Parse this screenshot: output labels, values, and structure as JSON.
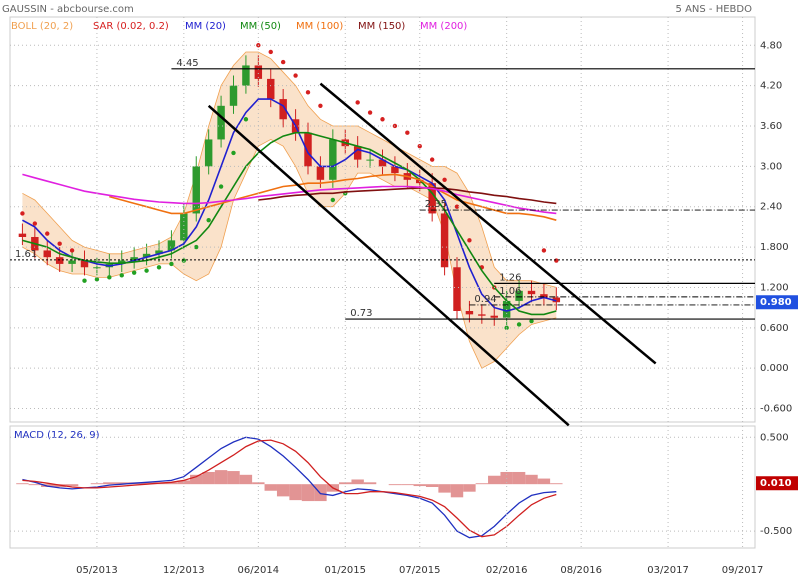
{
  "chart_data": {
    "type": "candlestick",
    "title": "GAUSSIN - abcbourse.com",
    "subtitle": "5 ANS - HEBDO",
    "x": [
      "2012-11",
      "2012-12",
      "2013-01",
      "2013-02",
      "2013-03",
      "2013-04",
      "2013-05",
      "2013-06",
      "2013-07",
      "2013-08",
      "2013-09",
      "2013-10",
      "2013-11",
      "2013-12",
      "2014-01",
      "2014-02",
      "2014-03",
      "2014-04",
      "2014-05",
      "2014-06",
      "2014-07",
      "2014-08",
      "2014-09",
      "2014-10",
      "2014-11",
      "2014-12",
      "2015-01",
      "2015-02",
      "2015-03",
      "2015-04",
      "2015-05",
      "2015-06",
      "2015-07",
      "2015-08",
      "2015-09",
      "2015-10",
      "2015-11",
      "2015-12",
      "2016-01",
      "2016-02",
      "2016-03",
      "2016-04",
      "2016-05",
      "2016-06"
    ],
    "xlim": [
      "2012-10",
      "2017-10"
    ],
    "xticks": [
      {
        "value": "2013-05",
        "label": "05/2013"
      },
      {
        "value": "2013-12",
        "label": "12/2013"
      },
      {
        "value": "2014-06",
        "label": "06/2014"
      },
      {
        "value": "2015-01",
        "label": "01/2015"
      },
      {
        "value": "2015-07",
        "label": "07/2015"
      },
      {
        "value": "2016-02",
        "label": "02/2016"
      },
      {
        "value": "2016-08",
        "label": "08/2016"
      },
      {
        "value": "2017-03",
        "label": "03/2017"
      },
      {
        "value": "2017-09",
        "label": "09/2017"
      }
    ],
    "ylim": [
      -0.8,
      5.22
    ],
    "yticks": [
      {
        "value": 4.8,
        "label": "4.80"
      },
      {
        "value": 4.2,
        "label": "4.20"
      },
      {
        "value": 3.6,
        "label": "3.60"
      },
      {
        "value": 3.0,
        "label": "3.00"
      },
      {
        "value": 2.4,
        "label": "2.40"
      },
      {
        "value": 1.8,
        "label": "1.800"
      },
      {
        "value": 1.2,
        "label": "1.200"
      },
      {
        "value": 0.6,
        "label": "0.600"
      },
      {
        "value": 0,
        "label": "0.000"
      },
      {
        "value": -0.6,
        "label": "-0.600"
      }
    ],
    "grid": true,
    "up_color": "#2e9a2e",
    "down_color": "#d02020",
    "open": [
      2.0,
      1.95,
      1.75,
      1.65,
      1.55,
      1.6,
      1.5,
      1.5,
      1.55,
      1.6,
      1.65,
      1.7,
      1.75,
      1.9,
      2.3,
      3.0,
      3.4,
      3.9,
      4.2,
      4.5,
      4.3,
      4.0,
      3.7,
      3.5,
      3.0,
      2.8,
      3.4,
      3.3,
      3.1,
      3.1,
      3.0,
      2.9,
      2.8,
      2.75,
      2.3,
      1.5,
      0.85,
      0.8,
      0.78,
      0.75,
      1.0,
      1.15,
      1.1,
      1.05
    ],
    "high": [
      2.15,
      2.1,
      1.9,
      1.8,
      1.75,
      1.75,
      1.65,
      1.7,
      1.75,
      1.8,
      1.85,
      1.9,
      2.05,
      2.45,
      3.15,
      3.55,
      4.05,
      4.35,
      4.65,
      4.65,
      4.45,
      4.15,
      3.85,
      3.65,
      3.15,
      3.55,
      3.55,
      3.45,
      3.25,
      3.25,
      3.15,
      3.05,
      2.95,
      2.9,
      2.45,
      1.65,
      1.0,
      0.95,
      0.93,
      1.15,
      1.3,
      1.3,
      1.25,
      1.2
    ],
    "low": [
      1.83,
      1.63,
      1.53,
      1.43,
      1.43,
      1.38,
      1.38,
      1.38,
      1.43,
      1.48,
      1.53,
      1.58,
      1.63,
      1.78,
      2.18,
      2.88,
      3.28,
      3.78,
      4.08,
      4.18,
      3.88,
      3.58,
      3.38,
      2.88,
      2.68,
      2.68,
      3.18,
      2.98,
      2.98,
      2.88,
      2.78,
      2.68,
      2.63,
      2.18,
      1.38,
      0.73,
      0.68,
      0.66,
      0.63,
      0.63,
      0.88,
      0.98,
      0.93,
      0.86
    ],
    "close": [
      1.95,
      1.75,
      1.65,
      1.55,
      1.6,
      1.5,
      1.5,
      1.55,
      1.6,
      1.65,
      1.7,
      1.75,
      1.9,
      2.3,
      3.0,
      3.4,
      3.9,
      4.2,
      4.5,
      4.3,
      4.0,
      3.7,
      3.5,
      3.0,
      2.8,
      3.4,
      3.3,
      3.1,
      3.1,
      3.0,
      2.9,
      2.8,
      2.75,
      2.3,
      1.5,
      0.85,
      0.8,
      0.78,
      0.75,
      1.0,
      1.15,
      1.1,
      1.05,
      0.98
    ],
    "indicators": [
      {
        "name": "BOLL (20, 2)",
        "color": "#f0a050",
        "kind": "band",
        "upper": [
          2.6,
          2.5,
          2.3,
          2.1,
          1.9,
          1.8,
          1.75,
          1.7,
          1.7,
          1.75,
          1.8,
          1.85,
          1.95,
          2.3,
          2.9,
          3.6,
          4.2,
          4.5,
          4.7,
          4.7,
          4.6,
          4.4,
          4.2,
          3.9,
          3.7,
          3.6,
          3.6,
          3.6,
          3.5,
          3.4,
          3.3,
          3.2,
          3.1,
          3.0,
          3.0,
          2.9,
          2.6,
          2.1,
          1.5,
          1.3,
          1.3,
          1.3,
          1.25,
          1.2
        ],
        "lower": [
          1.8,
          1.7,
          1.55,
          1.45,
          1.4,
          1.4,
          1.35,
          1.35,
          1.4,
          1.45,
          1.5,
          1.55,
          1.55,
          1.4,
          1.3,
          1.4,
          1.8,
          2.5,
          2.9,
          3.3,
          3.4,
          3.3,
          3.0,
          2.6,
          2.4,
          2.4,
          2.6,
          2.9,
          2.9,
          2.8,
          2.7,
          2.7,
          2.6,
          2.5,
          2.0,
          1.1,
          0.4,
          0.0,
          0.1,
          0.3,
          0.5,
          0.65,
          0.7,
          0.75
        ]
      },
      {
        "name": "SAR (0.02, 0.2)",
        "color": "#d62020",
        "alt_color": "#22a022",
        "kind": "dots",
        "values": [
          2.3,
          2.15,
          2.0,
          1.85,
          1.75,
          1.3,
          1.32,
          1.35,
          1.38,
          1.42,
          1.45,
          1.5,
          1.55,
          1.6,
          1.8,
          2.2,
          2.7,
          3.2,
          3.7,
          4.8,
          4.7,
          4.55,
          4.35,
          4.1,
          3.9,
          2.5,
          2.6,
          3.95,
          3.8,
          3.7,
          3.6,
          3.5,
          3.3,
          3.1,
          2.8,
          2.4,
          1.9,
          1.5,
          1.2,
          0.6,
          0.65,
          0.7,
          1.75,
          1.6
        ]
      },
      {
        "name": "MM (20)",
        "color": "#2020d0",
        "kind": "line",
        "values": [
          2.2,
          2.1,
          1.9,
          1.75,
          1.65,
          1.6,
          1.55,
          1.52,
          1.55,
          1.6,
          1.65,
          1.7,
          1.75,
          1.85,
          2.1,
          2.5,
          3.0,
          3.5,
          3.8,
          4.0,
          4.0,
          3.9,
          3.6,
          3.2,
          3.0,
          3.0,
          3.1,
          3.25,
          3.2,
          3.1,
          3.0,
          2.95,
          2.85,
          2.75,
          2.5,
          2.0,
          1.5,
          1.1,
          0.9,
          0.85,
          0.9,
          1.0,
          1.05,
          1.0
        ]
      },
      {
        "name": "MM (50)",
        "color": "#118811",
        "kind": "line",
        "values": [
          1.9,
          1.85,
          1.8,
          1.7,
          1.65,
          1.6,
          1.58,
          1.56,
          1.56,
          1.58,
          1.6,
          1.65,
          1.7,
          1.8,
          1.9,
          2.1,
          2.4,
          2.7,
          3.0,
          3.2,
          3.35,
          3.45,
          3.5,
          3.5,
          3.45,
          3.4,
          3.35,
          3.3,
          3.25,
          3.15,
          3.05,
          2.95,
          2.8,
          2.6,
          2.35,
          2.05,
          1.75,
          1.45,
          1.2,
          1.0,
          0.85,
          0.8,
          0.8,
          0.85
        ]
      },
      {
        "name": "MM (100)",
        "color": "#f07010",
        "kind": "line",
        "values": [
          null,
          null,
          null,
          null,
          null,
          null,
          null,
          2.55,
          2.5,
          2.45,
          2.4,
          2.35,
          2.3,
          2.3,
          2.35,
          2.4,
          2.45,
          2.5,
          2.55,
          2.6,
          2.65,
          2.7,
          2.72,
          2.75,
          2.75,
          2.77,
          2.8,
          2.82,
          2.85,
          2.87,
          2.88,
          2.85,
          2.8,
          2.7,
          2.6,
          2.5,
          2.45,
          2.4,
          2.35,
          2.3,
          2.3,
          2.28,
          2.25,
          2.2
        ]
      },
      {
        "name": "MM (150)",
        "color": "#801010",
        "kind": "line",
        "values": [
          null,
          null,
          null,
          null,
          null,
          null,
          null,
          null,
          null,
          null,
          null,
          null,
          null,
          null,
          null,
          null,
          null,
          null,
          null,
          2.5,
          2.52,
          2.55,
          2.57,
          2.58,
          2.6,
          2.6,
          2.62,
          2.63,
          2.64,
          2.65,
          2.66,
          2.67,
          2.68,
          2.68,
          2.67,
          2.65,
          2.62,
          2.6,
          2.57,
          2.55,
          2.52,
          2.5,
          2.47,
          2.45
        ]
      },
      {
        "name": "MM (200)",
        "color": "#e020e0",
        "kind": "line",
        "values": [
          2.88,
          2.83,
          2.78,
          2.73,
          2.68,
          2.63,
          2.6,
          2.57,
          2.54,
          2.51,
          2.49,
          2.47,
          2.46,
          2.45,
          2.45,
          2.46,
          2.48,
          2.5,
          2.52,
          2.55,
          2.57,
          2.59,
          2.61,
          2.63,
          2.65,
          2.66,
          2.67,
          2.68,
          2.69,
          2.7,
          2.7,
          2.7,
          2.69,
          2.67,
          2.63,
          2.58,
          2.54,
          2.5,
          2.46,
          2.42,
          2.38,
          2.35,
          2.32,
          2.3
        ]
      }
    ],
    "levels": [
      {
        "value": 4.45,
        "label": "4.45",
        "x_start": "2013-11",
        "style": "solid"
      },
      {
        "value": 1.61,
        "label": "1.61",
        "style": "dotted"
      },
      {
        "value": 0.73,
        "label": "0.73",
        "x_start": "2015-01",
        "style": "solid"
      },
      {
        "value": 2.35,
        "label": "2.35",
        "x_start": "2015-07",
        "style": "dashdot"
      },
      {
        "value": 1.26,
        "label": "1.26",
        "x_start": "2016-01",
        "style": "solid"
      },
      {
        "value": 1.06,
        "label": "1.06",
        "x_start": "2016-01",
        "style": "dashdot"
      },
      {
        "value": 0.94,
        "label": "0.94",
        "x_start": "2015-11",
        "style": "dashdot"
      }
    ],
    "trendlines": [
      {
        "x": [
          "2014-02",
          "2016-07"
        ],
        "y": [
          3.9,
          -0.85
        ]
      },
      {
        "x": [
          "2014-11",
          "2017-02"
        ],
        "y": [
          4.23,
          0.07
        ]
      }
    ],
    "price_tag": {
      "value": 0.98,
      "label": "0.980",
      "color": "#2050e0"
    },
    "macd": {
      "title": "MACD (12, 26, 9)",
      "ylim": [
        -0.68,
        0.62
      ],
      "yticks": [
        {
          "value": 0.5,
          "label": "0.500"
        },
        {
          "value": -0.5,
          "label": "-0.500"
        }
      ],
      "macd_color": "#2030c0",
      "signal_color": "#d02020",
      "histogram_color": "#d87070",
      "macd": [
        0.05,
        0.02,
        -0.02,
        -0.04,
        -0.05,
        -0.04,
        -0.03,
        -0.01,
        0.0,
        0.01,
        0.02,
        0.03,
        0.04,
        0.08,
        0.18,
        0.28,
        0.38,
        0.45,
        0.5,
        0.48,
        0.4,
        0.3,
        0.18,
        0.05,
        -0.1,
        -0.12,
        -0.08,
        -0.05,
        -0.06,
        -0.08,
        -0.1,
        -0.12,
        -0.15,
        -0.2,
        -0.33,
        -0.5,
        -0.57,
        -0.55,
        -0.45,
        -0.32,
        -0.2,
        -0.12,
        -0.09,
        -0.08
      ],
      "signal": [
        0.04,
        0.03,
        0.01,
        -0.01,
        -0.03,
        -0.04,
        -0.04,
        -0.03,
        -0.02,
        -0.01,
        0.0,
        0.01,
        0.02,
        0.04,
        0.08,
        0.15,
        0.23,
        0.31,
        0.4,
        0.46,
        0.47,
        0.43,
        0.35,
        0.23,
        0.08,
        -0.04,
        -0.1,
        -0.1,
        -0.08,
        -0.08,
        -0.09,
        -0.11,
        -0.13,
        -0.17,
        -0.24,
        -0.36,
        -0.49,
        -0.56,
        -0.54,
        -0.45,
        -0.33,
        -0.22,
        -0.15,
        -0.11
      ],
      "histogram": [
        0.01,
        -0.01,
        -0.03,
        -0.03,
        -0.02,
        0,
        0.01,
        0.02,
        0.02,
        0.02,
        0.02,
        0.02,
        0.02,
        0.04,
        0.1,
        0.13,
        0.15,
        0.14,
        0.1,
        0.02,
        -0.07,
        -0.13,
        -0.17,
        -0.18,
        -0.18,
        -0.08,
        0.02,
        0.05,
        0.02,
        0,
        -0.01,
        -0.01,
        -0.02,
        -0.03,
        -0.09,
        -0.14,
        -0.08,
        0.01,
        0.09,
        0.13,
        0.13,
        0.1,
        0.06,
        0.01
      ],
      "tag": {
        "value": 0.01,
        "label": "0.010",
        "color": "#c00000"
      }
    }
  }
}
